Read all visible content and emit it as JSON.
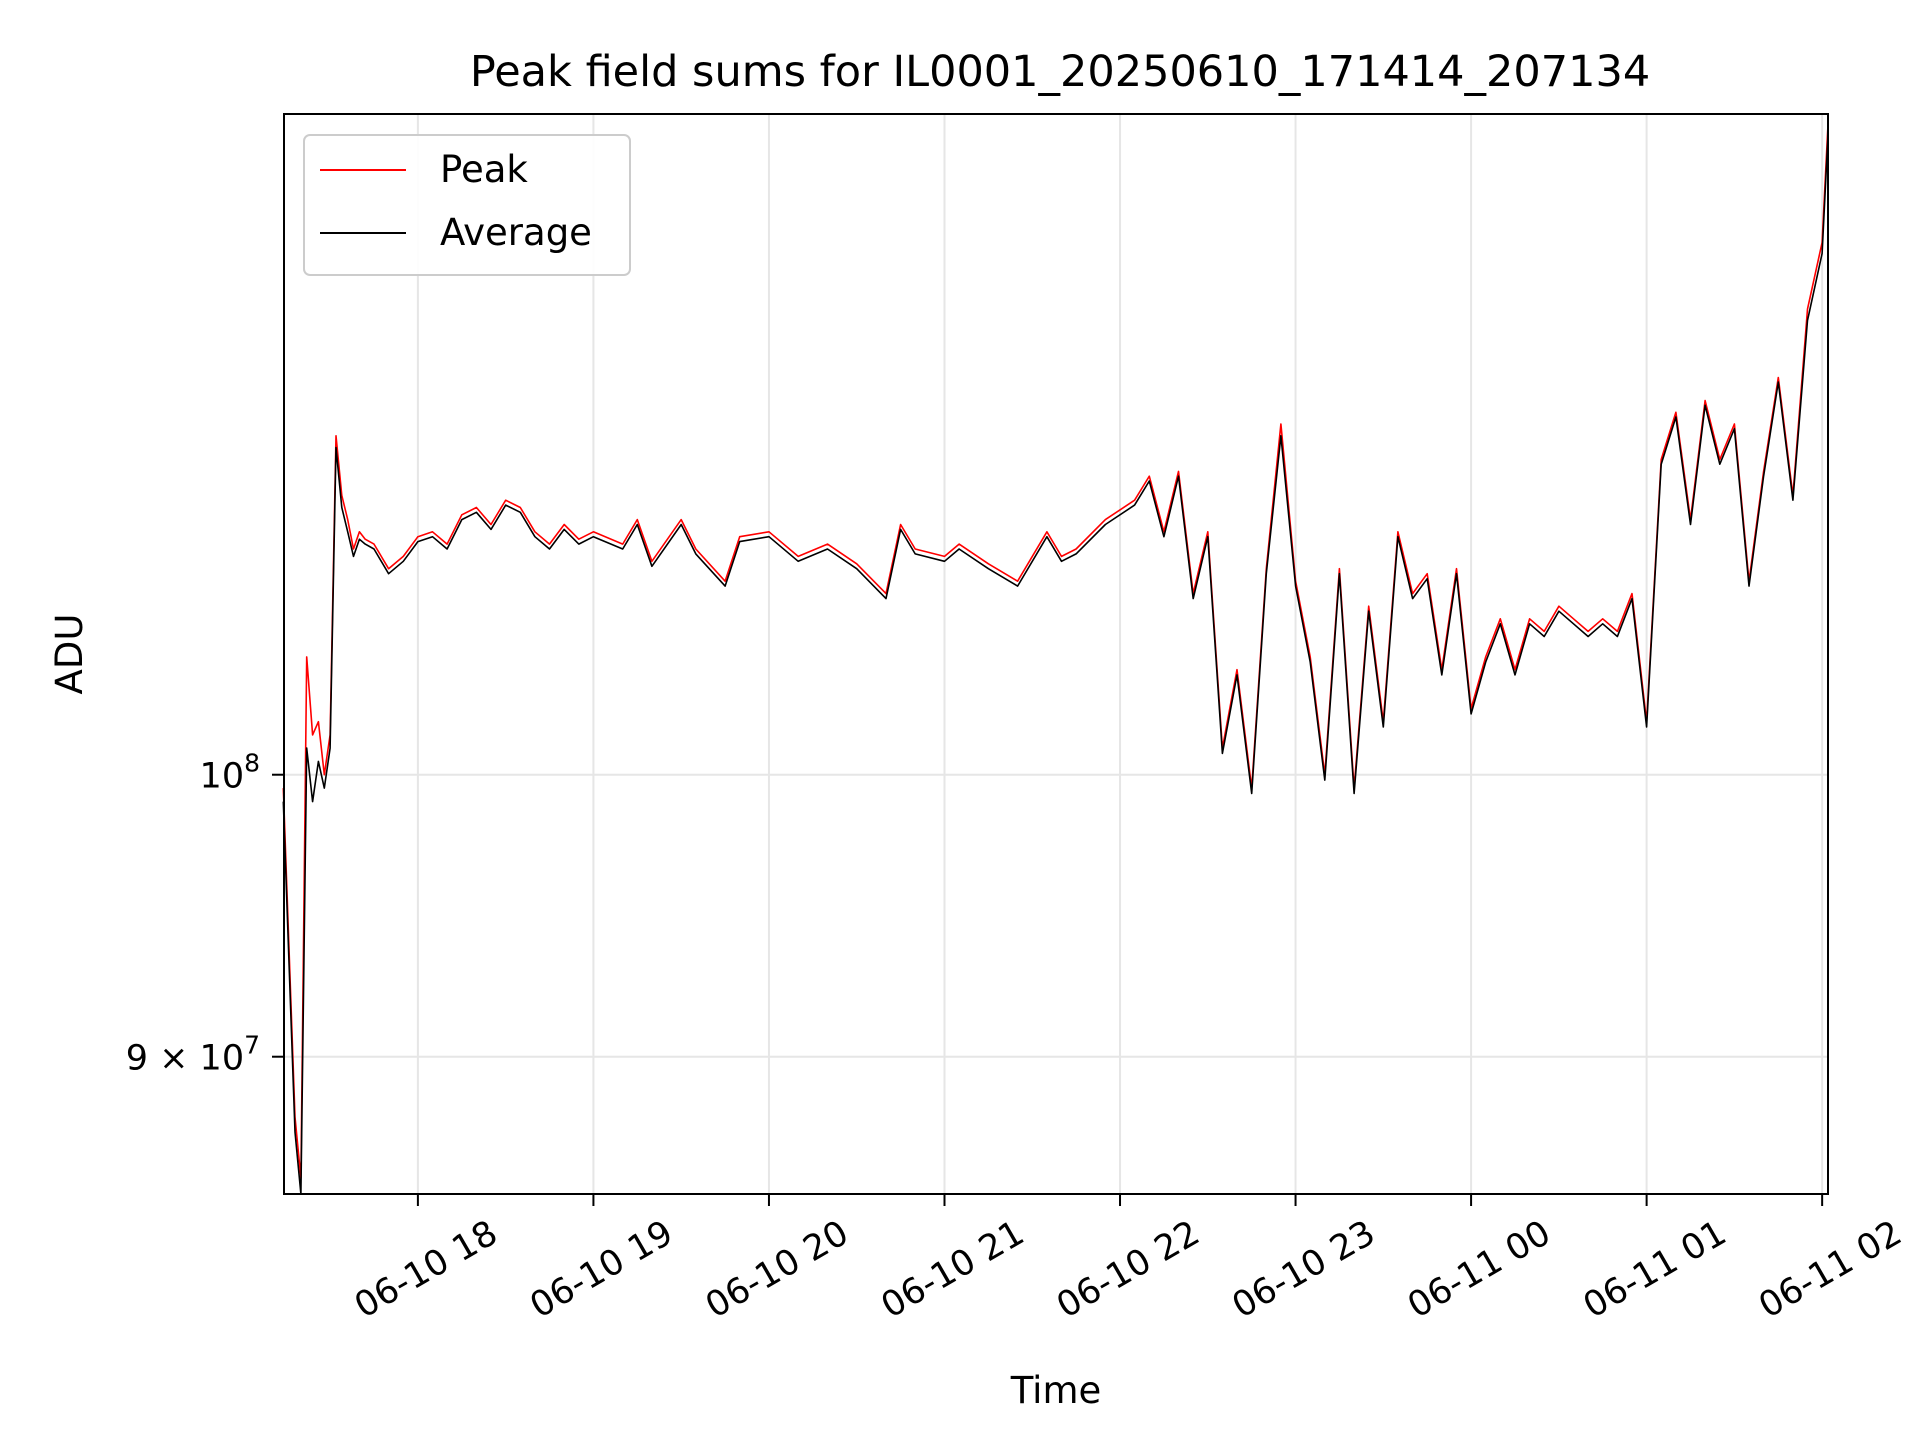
{
  "chart_data": {
    "type": "line",
    "title": "Peak field sums for IL0001_20250610_171414_207134",
    "xlabel": "Time",
    "ylabel": "ADU",
    "yscale": "log",
    "xlim": [
      "2025-06-10 17:14:14",
      "2025-06-11 02:02:00"
    ],
    "ylim": [
      85500000.0,
      128000000.0
    ],
    "grid": true,
    "legend_position": "upper-left",
    "x_ticks": [
      {
        "value": "2025-06-10 18:00",
        "label": "06-10 18"
      },
      {
        "value": "2025-06-10 19:00",
        "label": "06-10 19"
      },
      {
        "value": "2025-06-10 20:00",
        "label": "06-10 20"
      },
      {
        "value": "2025-06-10 21:00",
        "label": "06-10 21"
      },
      {
        "value": "2025-06-10 22:00",
        "label": "06-10 22"
      },
      {
        "value": "2025-06-10 23:00",
        "label": "06-10 23"
      },
      {
        "value": "2025-06-11 00:00",
        "label": "06-11 00"
      },
      {
        "value": "2025-06-11 01:00",
        "label": "06-11 01"
      },
      {
        "value": "2025-06-11 02:00",
        "label": "06-11 02"
      }
    ],
    "y_ticks": [
      {
        "value": 90000000,
        "label": "9×10⁷",
        "base": "9 × 10",
        "exp": "7"
      },
      {
        "value": 100000000,
        "label": "10⁸",
        "base": "10",
        "exp": "8"
      }
    ],
    "series": [
      {
        "name": "Peak",
        "color": "#ff0000",
        "x": [
          "2025-06-10 17:14",
          "2025-06-10 17:18",
          "2025-06-10 17:20",
          "2025-06-10 17:22",
          "2025-06-10 17:24",
          "2025-06-10 17:26",
          "2025-06-10 17:28",
          "2025-06-10 17:30",
          "2025-06-10 17:32",
          "2025-06-10 17:34",
          "2025-06-10 17:36",
          "2025-06-10 17:38",
          "2025-06-10 17:40",
          "2025-06-10 17:42",
          "2025-06-10 17:45",
          "2025-06-10 17:50",
          "2025-06-10 17:55",
          "2025-06-10 18:00",
          "2025-06-10 18:05",
          "2025-06-10 18:10",
          "2025-06-10 18:15",
          "2025-06-10 18:20",
          "2025-06-10 18:25",
          "2025-06-10 18:30",
          "2025-06-10 18:35",
          "2025-06-10 18:40",
          "2025-06-10 18:45",
          "2025-06-10 18:50",
          "2025-06-10 18:55",
          "2025-06-10 19:00",
          "2025-06-10 19:10",
          "2025-06-10 19:15",
          "2025-06-10 19:20",
          "2025-06-10 19:30",
          "2025-06-10 19:35",
          "2025-06-10 19:45",
          "2025-06-10 19:50",
          "2025-06-10 20:00",
          "2025-06-10 20:10",
          "2025-06-10 20:20",
          "2025-06-10 20:30",
          "2025-06-10 20:40",
          "2025-06-10 20:45",
          "2025-06-10 20:50",
          "2025-06-10 21:00",
          "2025-06-10 21:05",
          "2025-06-10 21:15",
          "2025-06-10 21:25",
          "2025-06-10 21:35",
          "2025-06-10 21:40",
          "2025-06-10 21:45",
          "2025-06-10 21:55",
          "2025-06-10 22:05",
          "2025-06-10 22:10",
          "2025-06-10 22:15",
          "2025-06-10 22:20",
          "2025-06-10 22:25",
          "2025-06-10 22:30",
          "2025-06-10 22:35",
          "2025-06-10 22:40",
          "2025-06-10 22:45",
          "2025-06-10 22:50",
          "2025-06-10 22:55",
          "2025-06-10 23:00",
          "2025-06-10 23:05",
          "2025-06-10 23:10",
          "2025-06-10 23:15",
          "2025-06-10 23:20",
          "2025-06-10 23:25",
          "2025-06-10 23:30",
          "2025-06-10 23:35",
          "2025-06-10 23:40",
          "2025-06-10 23:45",
          "2025-06-10 23:50",
          "2025-06-10 23:55",
          "2025-06-11 00:00",
          "2025-06-11 00:05",
          "2025-06-11 00:10",
          "2025-06-11 00:15",
          "2025-06-11 00:20",
          "2025-06-11 00:25",
          "2025-06-11 00:30",
          "2025-06-11 00:35",
          "2025-06-11 00:40",
          "2025-06-11 00:45",
          "2025-06-11 00:50",
          "2025-06-11 00:55",
          "2025-06-11 01:00",
          "2025-06-11 01:05",
          "2025-06-11 01:10",
          "2025-06-11 01:15",
          "2025-06-11 01:20",
          "2025-06-11 01:25",
          "2025-06-11 01:30",
          "2025-06-11 01:35",
          "2025-06-11 01:40",
          "2025-06-11 01:45",
          "2025-06-11 01:50",
          "2025-06-11 01:55",
          "2025-06-11 02:00",
          "2025-06-11 02:02"
        ],
        "values": [
          99500000,
          88000000,
          86000000,
          104500000,
          101500000,
          102000000,
          100000000,
          101500000,
          113500000,
          111000000,
          110000000,
          108800000,
          109500000,
          109200000,
          109000000,
          108000000,
          108500000,
          109300000,
          109500000,
          109000000,
          110200000,
          110500000,
          109800000,
          110800000,
          110500000,
          109500000,
          109000000,
          109800000,
          109200000,
          109500000,
          109000000,
          110000000,
          108300000,
          110000000,
          108800000,
          107500000,
          109300000,
          109500000,
          108500000,
          109000000,
          108200000,
          107000000,
          109800000,
          108800000,
          108500000,
          109000000,
          108200000,
          107500000,
          109500000,
          108500000,
          108800000,
          110000000,
          110800000,
          111800000,
          109500000,
          112000000,
          107000000,
          109500000,
          101000000,
          104000000,
          99500000,
          108000000,
          114000000,
          107500000,
          104500000,
          100000000,
          108000000,
          99500000,
          106500000,
          102000000,
          109500000,
          107000000,
          107800000,
          104000000,
          108000000,
          102500000,
          104500000,
          106000000,
          104000000,
          106000000,
          105500000,
          106500000,
          106000000,
          105500000,
          106000000,
          105500000,
          107000000,
          102000000,
          112500000,
          114500000,
          110000000,
          115000000,
          112500000,
          114000000,
          107500000,
          112000000,
          116000000,
          111000000,
          119000000,
          122000000,
          127500000
        ]
      },
      {
        "name": "Average",
        "color": "#000000",
        "x": [
          "2025-06-10 17:14",
          "2025-06-10 17:18",
          "2025-06-10 17:20",
          "2025-06-10 17:22",
          "2025-06-10 17:24",
          "2025-06-10 17:26",
          "2025-06-10 17:28",
          "2025-06-10 17:30",
          "2025-06-10 17:32",
          "2025-06-10 17:34",
          "2025-06-10 17:36",
          "2025-06-10 17:38",
          "2025-06-10 17:40",
          "2025-06-10 17:42",
          "2025-06-10 17:45",
          "2025-06-10 17:50",
          "2025-06-10 17:55",
          "2025-06-10 18:00",
          "2025-06-10 18:05",
          "2025-06-10 18:10",
          "2025-06-10 18:15",
          "2025-06-10 18:20",
          "2025-06-10 18:25",
          "2025-06-10 18:30",
          "2025-06-10 18:35",
          "2025-06-10 18:40",
          "2025-06-10 18:45",
          "2025-06-10 18:50",
          "2025-06-10 18:55",
          "2025-06-10 19:00",
          "2025-06-10 19:10",
          "2025-06-10 19:15",
          "2025-06-10 19:20",
          "2025-06-10 19:30",
          "2025-06-10 19:35",
          "2025-06-10 19:45",
          "2025-06-10 19:50",
          "2025-06-10 20:00",
          "2025-06-10 20:10",
          "2025-06-10 20:20",
          "2025-06-10 20:30",
          "2025-06-10 20:40",
          "2025-06-10 20:45",
          "2025-06-10 20:50",
          "2025-06-10 21:00",
          "2025-06-10 21:05",
          "2025-06-10 21:15",
          "2025-06-10 21:25",
          "2025-06-10 21:35",
          "2025-06-10 21:40",
          "2025-06-10 21:45",
          "2025-06-10 21:55",
          "2025-06-10 22:05",
          "2025-06-10 22:10",
          "2025-06-10 22:15",
          "2025-06-10 22:20",
          "2025-06-10 22:25",
          "2025-06-10 22:30",
          "2025-06-10 22:35",
          "2025-06-10 22:40",
          "2025-06-10 22:45",
          "2025-06-10 22:50",
          "2025-06-10 22:55",
          "2025-06-10 23:00",
          "2025-06-10 23:05",
          "2025-06-10 23:10",
          "2025-06-10 23:15",
          "2025-06-10 23:20",
          "2025-06-10 23:25",
          "2025-06-10 23:30",
          "2025-06-10 23:35",
          "2025-06-10 23:40",
          "2025-06-10 23:45",
          "2025-06-10 23:50",
          "2025-06-10 23:55",
          "2025-06-11 00:00",
          "2025-06-11 00:05",
          "2025-06-11 00:10",
          "2025-06-11 00:15",
          "2025-06-11 00:20",
          "2025-06-11 00:25",
          "2025-06-11 00:30",
          "2025-06-11 00:35",
          "2025-06-11 00:40",
          "2025-06-11 00:45",
          "2025-06-11 00:50",
          "2025-06-11 00:55",
          "2025-06-11 01:00",
          "2025-06-11 01:05",
          "2025-06-11 01:10",
          "2025-06-11 01:15",
          "2025-06-11 01:20",
          "2025-06-11 01:25",
          "2025-06-11 01:30",
          "2025-06-11 01:35",
          "2025-06-11 01:40",
          "2025-06-11 01:45",
          "2025-06-11 01:50",
          "2025-06-11 01:55",
          "2025-06-11 02:00",
          "2025-06-11 02:02"
        ],
        "values": [
          99000000,
          87500000,
          85500000,
          101000000,
          99000000,
          100500000,
          99500000,
          101000000,
          113000000,
          110500000,
          109500000,
          108500000,
          109200000,
          109000000,
          108800000,
          107800000,
          108300000,
          109100000,
          109300000,
          108800000,
          110000000,
          110300000,
          109600000,
          110600000,
          110300000,
          109300000,
          108800000,
          109600000,
          109000000,
          109300000,
          108800000,
          109800000,
          108100000,
          109800000,
          108600000,
          107300000,
          109100000,
          109300000,
          108300000,
          108800000,
          108000000,
          106800000,
          109600000,
          108600000,
          108300000,
          108800000,
          108000000,
          107300000,
          109300000,
          108300000,
          108600000,
          109800000,
          110600000,
          111600000,
          109300000,
          111800000,
          106800000,
          109300000,
          100800000,
          103800000,
          99300000,
          107800000,
          113500000,
          107300000,
          104300000,
          99800000,
          107800000,
          99300000,
          106300000,
          101800000,
          109300000,
          106800000,
          107600000,
          103800000,
          107800000,
          102300000,
          104300000,
          105800000,
          103800000,
          105800000,
          105300000,
          106300000,
          105800000,
          105300000,
          105800000,
          105300000,
          106800000,
          101800000,
          112300000,
          114300000,
          109800000,
          114800000,
          112300000,
          113800000,
          107300000,
          111800000,
          115800000,
          110800000,
          118500000,
          121500000,
          127000000
        ]
      }
    ]
  }
}
